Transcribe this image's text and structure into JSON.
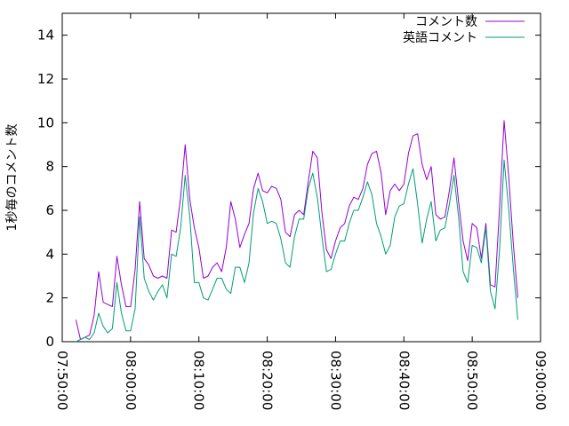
{
  "chart_data": {
    "type": "line",
    "title": "",
    "xlabel": "",
    "ylabel": "1秒毎のコメント数",
    "xlim": [
      "07:50:00",
      "09:00:00"
    ],
    "ylim": [
      0,
      15
    ],
    "x_ticks": [
      "07:50:00",
      "08:00:00",
      "08:10:00",
      "08:20:00",
      "08:30:00",
      "08:40:00",
      "08:50:00",
      "09:00:00"
    ],
    "y_ticks": [
      0,
      2,
      4,
      6,
      8,
      10,
      12,
      14
    ],
    "grid": false,
    "legend_position": "top-right",
    "sample_interval_seconds": 40,
    "series": [
      {
        "name": "コメント数",
        "color": "#9400d3",
        "start": "07:52:00",
        "values": [
          1.0,
          0.1,
          0.2,
          0.3,
          1.2,
          3.2,
          1.8,
          1.7,
          1.6,
          3.9,
          2.6,
          1.6,
          1.6,
          3.3,
          6.4,
          3.8,
          3.5,
          3.0,
          2.9,
          3.0,
          2.9,
          5.1,
          5.0,
          6.6,
          9.0,
          6.5,
          5.2,
          4.3,
          2.9,
          3.0,
          3.4,
          3.6,
          3.2,
          4.3,
          6.4,
          5.6,
          4.3,
          4.9,
          5.4,
          7.0,
          7.7,
          6.9,
          6.8,
          7.1,
          7.0,
          6.5,
          5.0,
          4.8,
          5.8,
          6.0,
          5.8,
          7.3,
          8.7,
          8.4,
          5.9,
          4.2,
          3.8,
          4.6,
          5.2,
          5.4,
          6.2,
          6.6,
          6.5,
          7.0,
          8.1,
          8.6,
          8.7,
          7.7,
          5.8,
          6.9,
          7.2,
          6.9,
          7.2,
          8.6,
          9.4,
          9.5,
          8.1,
          7.4,
          8.0,
          5.8,
          5.6,
          5.7,
          6.9,
          8.4,
          6.4,
          4.6,
          3.7,
          5.4,
          5.2,
          3.8,
          5.4,
          2.6,
          2.5,
          6.1,
          10.1,
          7.6,
          4.5,
          2.0
        ]
      },
      {
        "name": "英語コメント",
        "color": "#009e73",
        "start": "07:52:00",
        "values": [
          0.0,
          0.1,
          0.2,
          0.1,
          0.4,
          1.3,
          0.7,
          0.4,
          0.6,
          2.7,
          1.3,
          0.5,
          0.5,
          1.5,
          5.7,
          2.9,
          2.3,
          1.9,
          2.3,
          2.6,
          2.0,
          4.0,
          3.9,
          5.2,
          7.6,
          5.7,
          2.7,
          2.7,
          2.0,
          1.9,
          2.4,
          2.9,
          2.9,
          2.4,
          2.2,
          3.4,
          3.4,
          2.7,
          3.6,
          5.9,
          7.0,
          6.4,
          5.4,
          5.5,
          5.4,
          4.7,
          3.6,
          3.4,
          4.8,
          5.6,
          5.6,
          7.0,
          7.7,
          6.6,
          4.8,
          3.2,
          3.3,
          4.0,
          4.6,
          4.6,
          5.4,
          6.0,
          6.0,
          6.6,
          7.3,
          6.7,
          5.4,
          4.8,
          4.0,
          4.4,
          5.7,
          6.2,
          6.3,
          7.2,
          7.9,
          6.3,
          4.5,
          5.6,
          6.4,
          4.6,
          5.1,
          5.2,
          6.3,
          7.6,
          5.7,
          3.2,
          2.7,
          4.4,
          4.3,
          3.6,
          5.2,
          2.3,
          1.5,
          4.2,
          8.3,
          6.1,
          3.4,
          1.0
        ]
      }
    ]
  }
}
